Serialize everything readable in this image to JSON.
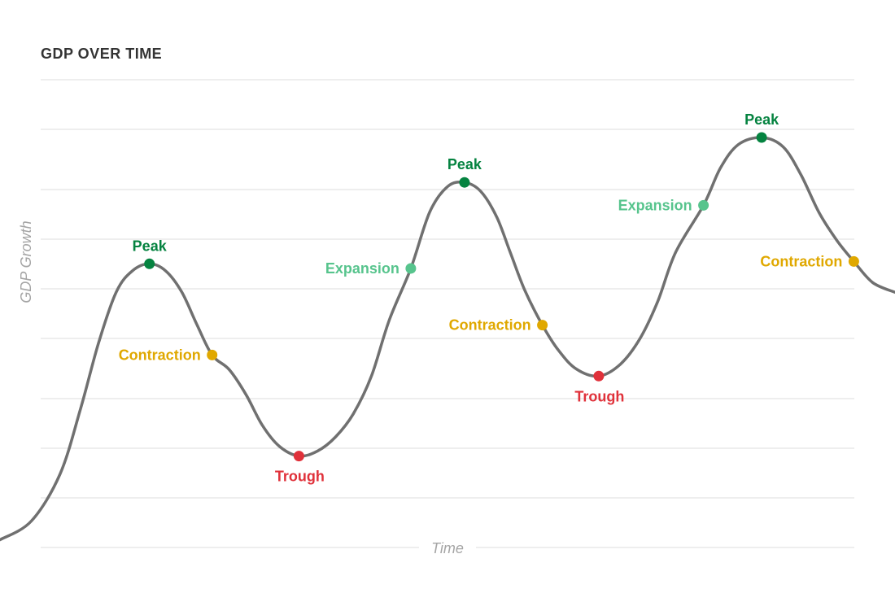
{
  "title": "GDP OVER TIME",
  "colors": {
    "peak": "#058340",
    "trough": "#e0313a",
    "expansion": "#57c48d",
    "contraction": "#e0a800",
    "curve": "#707070",
    "grid": "#dddddd",
    "axis_label": "#a5a5a5",
    "title": "#333333"
  },
  "chart_data": {
    "type": "line",
    "title": "GDP OVER TIME",
    "xlabel": "Time",
    "ylabel": "GDP Growth",
    "xlim": [
      0,
      100
    ],
    "ylim": [
      0,
      100
    ],
    "grid": true,
    "series": [
      {
        "values": [
          [
            0.0,
            2.0
          ],
          [
            3.5,
            6.0
          ],
          [
            6.7,
            16.0
          ],
          [
            9.0,
            30.0
          ],
          [
            11.0,
            44.0
          ],
          [
            13.0,
            55.0
          ],
          [
            14.8,
            59.5
          ],
          [
            16.7,
            61.0
          ],
          [
            18.5,
            59.5
          ],
          [
            20.3,
            55.0
          ],
          [
            22.0,
            48.0
          ],
          [
            23.7,
            41.5
          ],
          [
            25.6,
            38.4
          ],
          [
            27.5,
            33.0
          ],
          [
            29.3,
            26.5
          ],
          [
            31.2,
            22.0
          ],
          [
            33.4,
            19.9
          ],
          [
            35.5,
            21.0
          ],
          [
            37.5,
            24.0
          ],
          [
            39.5,
            29.0
          ],
          [
            41.5,
            37.0
          ],
          [
            43.5,
            49.0
          ],
          [
            45.9,
            60.0
          ],
          [
            48.0,
            72.0
          ],
          [
            50.0,
            77.5
          ],
          [
            51.9,
            78.4
          ],
          [
            53.7,
            76.5
          ],
          [
            55.5,
            71.0
          ],
          [
            57.0,
            63.5
          ],
          [
            58.6,
            55.5
          ],
          [
            60.6,
            47.9
          ],
          [
            62.4,
            42.5
          ],
          [
            64.4,
            38.5
          ],
          [
            66.9,
            37.0
          ],
          [
            69.3,
            39.5
          ],
          [
            71.5,
            45.0
          ],
          [
            73.5,
            53.0
          ],
          [
            75.5,
            63.5
          ],
          [
            78.6,
            73.5
          ],
          [
            80.5,
            81.5
          ],
          [
            82.5,
            86.5
          ],
          [
            85.1,
            88.0
          ],
          [
            87.5,
            86.0
          ],
          [
            89.5,
            80.0
          ],
          [
            91.5,
            72.0
          ],
          [
            93.5,
            66.0
          ],
          [
            95.4,
            61.5
          ],
          [
            97.5,
            57.0
          ],
          [
            100.0,
            54.9
          ]
        ]
      }
    ],
    "points": [
      {
        "label": "Peak",
        "kind": "peak",
        "x": 16.7,
        "y": 61.0
      },
      {
        "label": "Contraction",
        "kind": "contraction",
        "x": 23.7,
        "y": 41.5
      },
      {
        "label": "Trough",
        "kind": "trough",
        "x": 33.4,
        "y": 19.9
      },
      {
        "label": "Expansion",
        "kind": "expansion",
        "x": 45.9,
        "y": 60.0
      },
      {
        "label": "Peak",
        "kind": "peak",
        "x": 51.9,
        "y": 78.4
      },
      {
        "label": "Contraction",
        "kind": "contraction",
        "x": 60.6,
        "y": 47.9
      },
      {
        "label": "Trough",
        "kind": "trough",
        "x": 66.9,
        "y": 37.0
      },
      {
        "label": "Expansion",
        "kind": "expansion",
        "x": 78.6,
        "y": 73.5
      },
      {
        "label": "Peak",
        "kind": "peak",
        "x": 85.1,
        "y": 88.0
      },
      {
        "label": "Contraction",
        "kind": "contraction",
        "x": 95.4,
        "y": 61.5
      }
    ]
  }
}
